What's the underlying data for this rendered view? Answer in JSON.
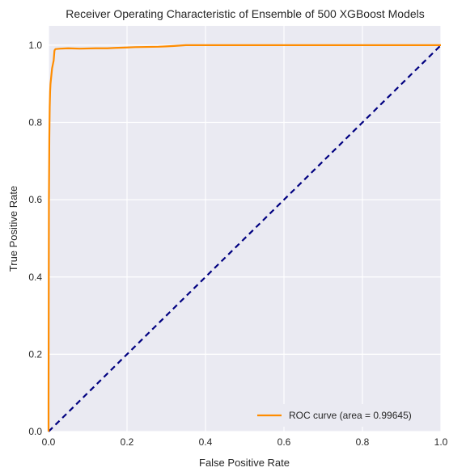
{
  "chart_data": {
    "type": "line",
    "title": "Receiver Operating Characteristic of Ensemble of 500 XGBoost Models",
    "xlabel": "False Positive Rate",
    "ylabel": "True Positive Rate",
    "xlim": [
      0.0,
      1.0
    ],
    "ylim": [
      0.0,
      1.05
    ],
    "xticks": [
      "0.0",
      "0.2",
      "0.4",
      "0.6",
      "0.8",
      "1.0"
    ],
    "yticks": [
      "0.0",
      "0.2",
      "0.4",
      "0.6",
      "0.8",
      "1.0"
    ],
    "grid": true,
    "legend_position": "lower-right",
    "series": [
      {
        "name": "ROC curve (area = 0.99645)",
        "color": "#ff8c00",
        "style": "solid",
        "x": [
          0.0,
          0.0,
          0.001,
          0.002,
          0.003,
          0.004,
          0.005,
          0.006,
          0.007,
          0.009,
          0.011,
          0.013,
          0.015,
          0.016,
          0.018,
          0.03,
          0.05,
          0.08,
          0.12,
          0.15,
          0.17,
          0.2,
          0.22,
          0.28,
          0.3,
          0.32,
          0.35,
          0.5,
          0.7,
          1.0
        ],
        "y": [
          0.0,
          0.075,
          0.6,
          0.76,
          0.84,
          0.88,
          0.9,
          0.91,
          0.92,
          0.94,
          0.95,
          0.96,
          0.985,
          0.988,
          0.99,
          0.991,
          0.992,
          0.991,
          0.992,
          0.992,
          0.993,
          0.994,
          0.995,
          0.996,
          0.997,
          0.998,
          1.0,
          1.0,
          1.0,
          1.0
        ]
      },
      {
        "name": "",
        "color": "#000080",
        "style": "dashed",
        "x": [
          0.0,
          1.0
        ],
        "y": [
          0.0,
          1.0
        ]
      }
    ]
  }
}
